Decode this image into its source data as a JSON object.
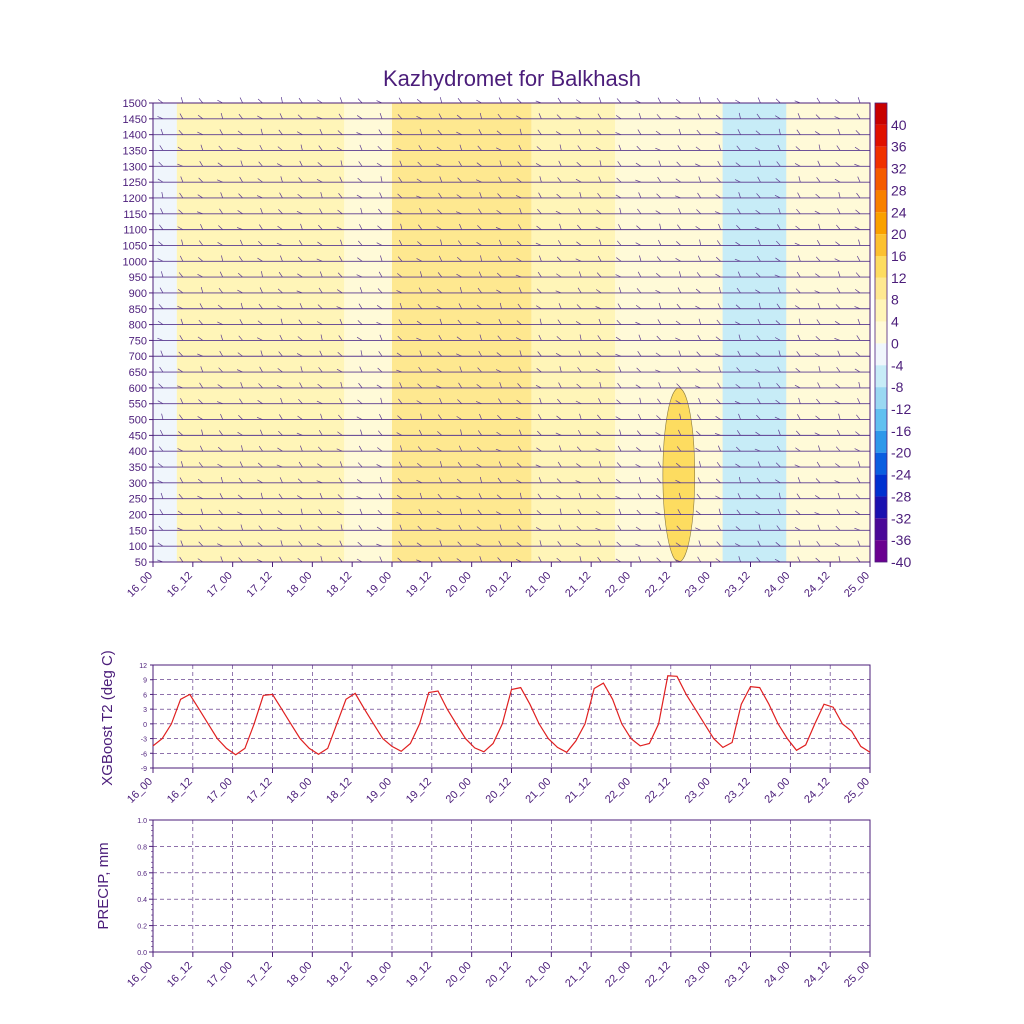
{
  "page": {
    "title": "Kazhydromet for Balkhash"
  },
  "colors": {
    "axis": "#4b1d7a",
    "grid": "#4b1d7a",
    "t2_line": "#e02020",
    "barb": "#5a3a90"
  },
  "time_ticks": [
    "16_00",
    "16_12",
    "17_00",
    "17_12",
    "18_00",
    "18_12",
    "19_00",
    "19_12",
    "20_00",
    "20_12",
    "21_00",
    "21_12",
    "22_00",
    "22_12",
    "23_00",
    "23_12",
    "24_00",
    "24_12",
    "25_00"
  ],
  "chart_data": [
    {
      "id": "cross-section",
      "type": "heatmap",
      "title": "Kazhydromet for Balkhash",
      "xlabel": "",
      "ylabel": "",
      "yticks": [
        50,
        100,
        150,
        200,
        250,
        300,
        350,
        400,
        450,
        500,
        550,
        600,
        650,
        700,
        750,
        800,
        850,
        900,
        950,
        1000,
        1050,
        1100,
        1150,
        1200,
        1250,
        1300,
        1350,
        1400,
        1450,
        1500
      ],
      "ylim": [
        50,
        1500
      ],
      "colorbar": {
        "labels": [
          "40",
          "36",
          "32",
          "28",
          "24",
          "20",
          "16",
          "12",
          "8",
          "4",
          "0",
          "-4",
          "-8",
          "-12",
          "-16",
          "-20",
          "-24",
          "-28",
          "-32",
          "-36",
          "-40"
        ],
        "colors": [
          "#c80000",
          "#e01000",
          "#f03000",
          "#f55a00",
          "#f88000",
          "#faa000",
          "#fcc030",
          "#fddc60",
          "#fee890",
          "#fff5b8",
          "#fffad8",
          "#f0f6fc",
          "#c7ecf7",
          "#9ad8f2",
          "#62c0f0",
          "#2f98ea",
          "#0b5ee0",
          "#0030d0",
          "#1a10b0",
          "#4a0898",
          "#6a0090"
        ]
      },
      "zones": [
        {
          "x0": 0.0,
          "x1": 0.6,
          "cls": "-4"
        },
        {
          "x0": 0.6,
          "x1": 4.8,
          "cls": "4"
        },
        {
          "x0": 4.8,
          "x1": 6.0,
          "cls": "0"
        },
        {
          "x0": 6.0,
          "x1": 9.5,
          "cls": "8"
        },
        {
          "x0": 9.5,
          "x1": 11.6,
          "cls": "4"
        },
        {
          "x0": 11.6,
          "x1": 14.3,
          "cls": "0"
        },
        {
          "x0": 14.3,
          "x1": 15.9,
          "cls": "-8"
        },
        {
          "x0": 15.9,
          "x1": 18.0,
          "cls": "0"
        }
      ],
      "warm_core": {
        "x": 13.2,
        "y0": 50,
        "y1": 600,
        "cls": "12"
      }
    },
    {
      "id": "t2",
      "type": "line",
      "xlabel": "",
      "ylabel": "XGBoost T2 (deg C)",
      "yticks": [
        -9,
        -6,
        -3,
        0,
        3,
        6,
        9,
        12
      ],
      "ylim": [
        -9,
        12
      ],
      "series": [
        {
          "values": [
            -4.5,
            -3,
            0,
            5,
            6,
            3,
            0,
            -3,
            -5,
            -6.3,
            -5,
            0,
            5.8,
            6,
            3,
            0,
            -3,
            -5,
            -6.2,
            -5,
            0,
            5,
            6.2,
            3,
            0,
            -3,
            -4.6,
            -5.6,
            -4,
            0,
            6.4,
            6.7,
            3,
            0,
            -3,
            -4.9,
            -5.7,
            -4,
            0,
            7,
            7.4,
            4,
            0,
            -3,
            -4.8,
            -5.8,
            -3.5,
            0,
            7.2,
            8.3,
            5,
            0,
            -3,
            -4.5,
            -4,
            0,
            9.8,
            9.7,
            6,
            3,
            0,
            -3,
            -4.8,
            -3.8,
            4,
            7.6,
            7.4,
            4,
            0,
            -3,
            -5.4,
            -4.3,
            0,
            4,
            3.4,
            0,
            -1.5,
            -4.6,
            -5.8
          ]
        }
      ]
    },
    {
      "id": "precip",
      "type": "bar",
      "xlabel": "",
      "ylabel": "PRECIP, mm",
      "yticks": [
        "0.0",
        "0.2",
        "0.4",
        "0.6",
        "0.8",
        "1.0"
      ],
      "ylim": [
        0,
        1
      ],
      "values": []
    }
  ]
}
